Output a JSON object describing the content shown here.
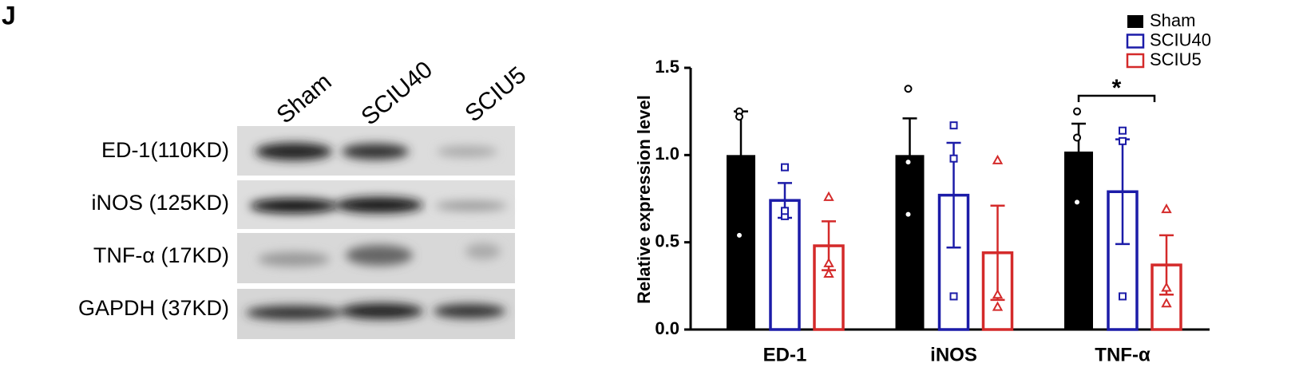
{
  "panel_label": "J",
  "blot": {
    "lanes": [
      "Sham",
      "SCIU40",
      "SCIU5"
    ],
    "rows": [
      "ED-1(110KD)",
      "iNOS (125KD)",
      "TNF-α (17KD)",
      "GAPDH (37KD)"
    ]
  },
  "chart_data": {
    "type": "bar",
    "y_label": "Relative expression level",
    "categories": [
      "ED-1",
      "iNOS",
      "TNF-α"
    ],
    "ylim": [
      0,
      1.5
    ],
    "yticks": [
      {
        "value": 0,
        "label": "0.0"
      },
      0.5,
      {
        "value": 1,
        "label": "1.0"
      },
      1.5
    ],
    "series": [
      {
        "name": "Sham",
        "color": "#000000",
        "filled": true,
        "marker": "circle",
        "values": [
          1.0,
          1.0,
          1.02
        ],
        "errors": [
          0.25,
          0.21,
          0.16
        ],
        "points": [
          [
            0.54,
            1.25,
            1.22
          ],
          [
            1.38,
            0.96,
            0.66
          ],
          [
            1.25,
            1.1,
            0.73
          ]
        ]
      },
      {
        "name": "SCIU40",
        "color": "#1c1ca8",
        "filled": false,
        "marker": "square",
        "values": [
          0.74,
          0.77,
          0.79
        ],
        "errors": [
          0.1,
          0.3,
          0.3
        ],
        "points": [
          [
            0.93,
            0.65,
            0.68
          ],
          [
            1.17,
            0.98,
            0.19
          ],
          [
            1.14,
            1.08,
            0.19
          ]
        ]
      },
      {
        "name": "SCIU5",
        "color": "#d42a2a",
        "filled": false,
        "marker": "triangle",
        "values": [
          0.48,
          0.44,
          0.37
        ],
        "errors": [
          0.14,
          0.27,
          0.17
        ],
        "points": [
          [
            0.76,
            0.38,
            0.32
          ],
          [
            0.97,
            0.2,
            0.13
          ],
          [
            0.69,
            0.24,
            0.15
          ]
        ]
      }
    ],
    "annotations": [
      {
        "text": "*"
      }
    ]
  }
}
